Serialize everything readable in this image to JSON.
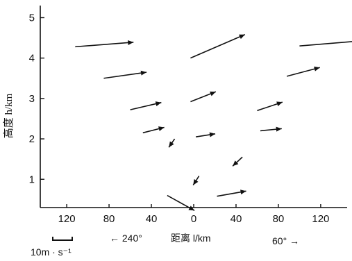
{
  "chart_data": {
    "type": "vector-field",
    "xlabel": "距离 l/km",
    "ylabel": "高度 h/km",
    "x_ticks": [
      "120",
      "80",
      "40",
      "0",
      "40",
      "80",
      "120"
    ],
    "y_ticks": [
      "1",
      "2",
      "3",
      "4",
      "5"
    ],
    "x_axis_note": "signed distance: left side is the 240° direction, right side the 60° direction",
    "xlim": [
      -145,
      145
    ],
    "ylim": [
      0.3,
      5.3
    ],
    "direction_left": "← 240°",
    "direction_right": "60° →",
    "scale_label": "10m · s⁻¹",
    "scale_value_ms": 10,
    "vectors": [
      {
        "x": -112,
        "h": 4.28,
        "u": 30,
        "w": 0.15
      },
      {
        "x": -85,
        "h": 3.5,
        "u": 22,
        "w": 0.2
      },
      {
        "x": -60,
        "h": 2.72,
        "u": 16,
        "w": 0.24
      },
      {
        "x": -48,
        "h": 2.15,
        "u": 11,
        "w": 0.18
      },
      {
        "x": -18,
        "h": 2.0,
        "u": -3,
        "w": -0.28
      },
      {
        "x": -25,
        "h": 0.6,
        "u": 14,
        "w": -0.5
      },
      {
        "x": -3,
        "h": 4.0,
        "u": 28,
        "w": 0.78
      },
      {
        "x": -3,
        "h": 2.92,
        "u": 13,
        "w": 0.33
      },
      {
        "x": 2,
        "h": 2.05,
        "u": 10,
        "w": 0.1
      },
      {
        "x": 5,
        "h": 1.08,
        "u": -3,
        "w": -0.3
      },
      {
        "x": 22,
        "h": 0.58,
        "u": 15,
        "w": 0.17
      },
      {
        "x": 46,
        "h": 1.55,
        "u": -5,
        "w": -0.3
      },
      {
        "x": 60,
        "h": 2.7,
        "u": 13,
        "w": 0.28
      },
      {
        "x": 63,
        "h": 2.2,
        "u": 11,
        "w": 0.07
      },
      {
        "x": 88,
        "h": 3.55,
        "u": 17,
        "w": 0.29
      },
      {
        "x": 100,
        "h": 4.3,
        "u": 30,
        "w": 0.16
      }
    ]
  }
}
